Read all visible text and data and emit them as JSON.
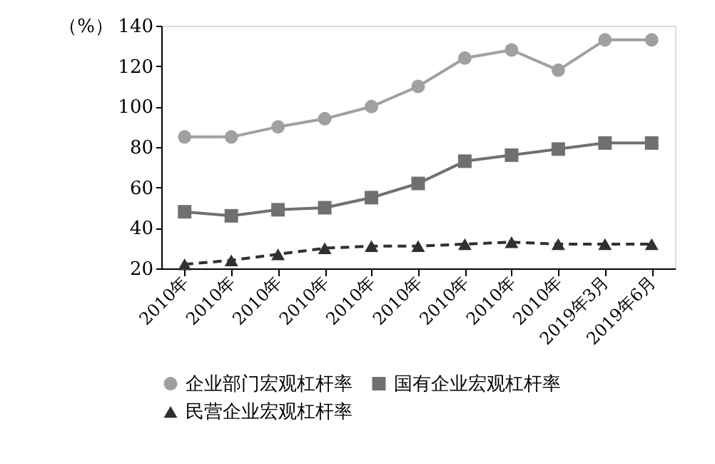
{
  "chart_data": {
    "type": "line",
    "ylabel": "（%）",
    "categories": [
      "2010年",
      "2010年",
      "2010年",
      "2010年",
      "2010年",
      "2010年",
      "2010年",
      "2010年",
      "2010年",
      "2019年3月",
      "2019年6月"
    ],
    "series": [
      {
        "name": "企业部门宏观杠杆率",
        "color": "#a0a0a0",
        "marker": "circle",
        "line_style": "solid",
        "values": [
          85,
          85,
          90,
          94,
          100,
          110,
          124,
          128,
          118,
          133,
          133
        ]
      },
      {
        "name": "国有企业宏观杠杆率",
        "color": "#707070",
        "marker": "square",
        "line_style": "solid",
        "values": [
          48,
          46,
          49,
          50,
          55,
          62,
          73,
          76,
          79,
          82,
          82
        ]
      },
      {
        "name": "民营企业宏观杠杆率",
        "color": "#303030",
        "marker": "triangle",
        "line_style": "dashed",
        "values": [
          22,
          24,
          27,
          30,
          31,
          31,
          32,
          33,
          32,
          32,
          32
        ]
      }
    ],
    "ylim": [
      20,
      140
    ],
    "yticks": [
      20,
      40,
      60,
      80,
      100,
      120,
      140
    ],
    "grid": false,
    "legend": "bottom"
  }
}
